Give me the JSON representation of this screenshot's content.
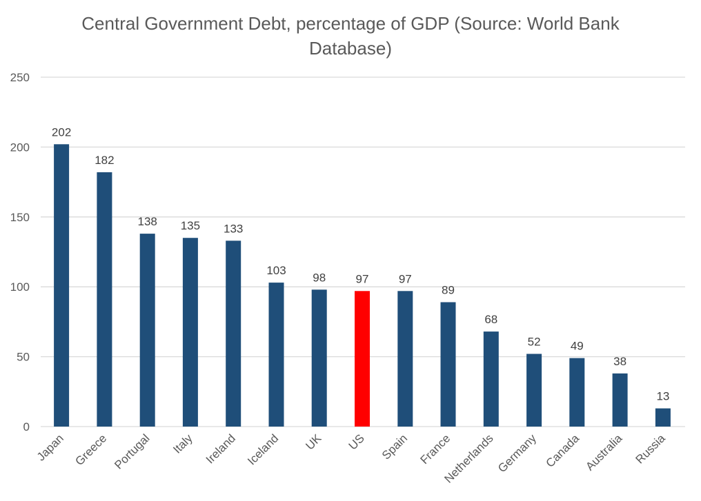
{
  "chart_data": {
    "type": "bar",
    "title_lines": [
      "Central Government Debt, percentage of GDP (Source: World Bank",
      "Database)"
    ],
    "categories": [
      "Japan",
      "Greece",
      "Portugal",
      "Italy",
      "Ireland",
      "Iceland",
      "UK",
      "US",
      "Spain",
      "France",
      "Netherlands",
      "Germany",
      "Canada",
      "Australia",
      "Russia"
    ],
    "values": [
      202,
      182,
      138,
      135,
      133,
      103,
      98,
      97,
      97,
      89,
      68,
      52,
      49,
      38,
      13
    ],
    "data_labels": [
      "202",
      "182",
      "138",
      "135",
      "133",
      "103",
      "98",
      "97",
      "97",
      "89",
      "68",
      "52",
      "49",
      "38",
      "13"
    ],
    "ylim": [
      0,
      250
    ],
    "yticks": [
      0,
      50,
      100,
      150,
      200,
      250
    ],
    "grid": true,
    "colors": {
      "bar": "#1f4e79",
      "highlight": "#ff0000",
      "highlight_category": "US"
    }
  }
}
